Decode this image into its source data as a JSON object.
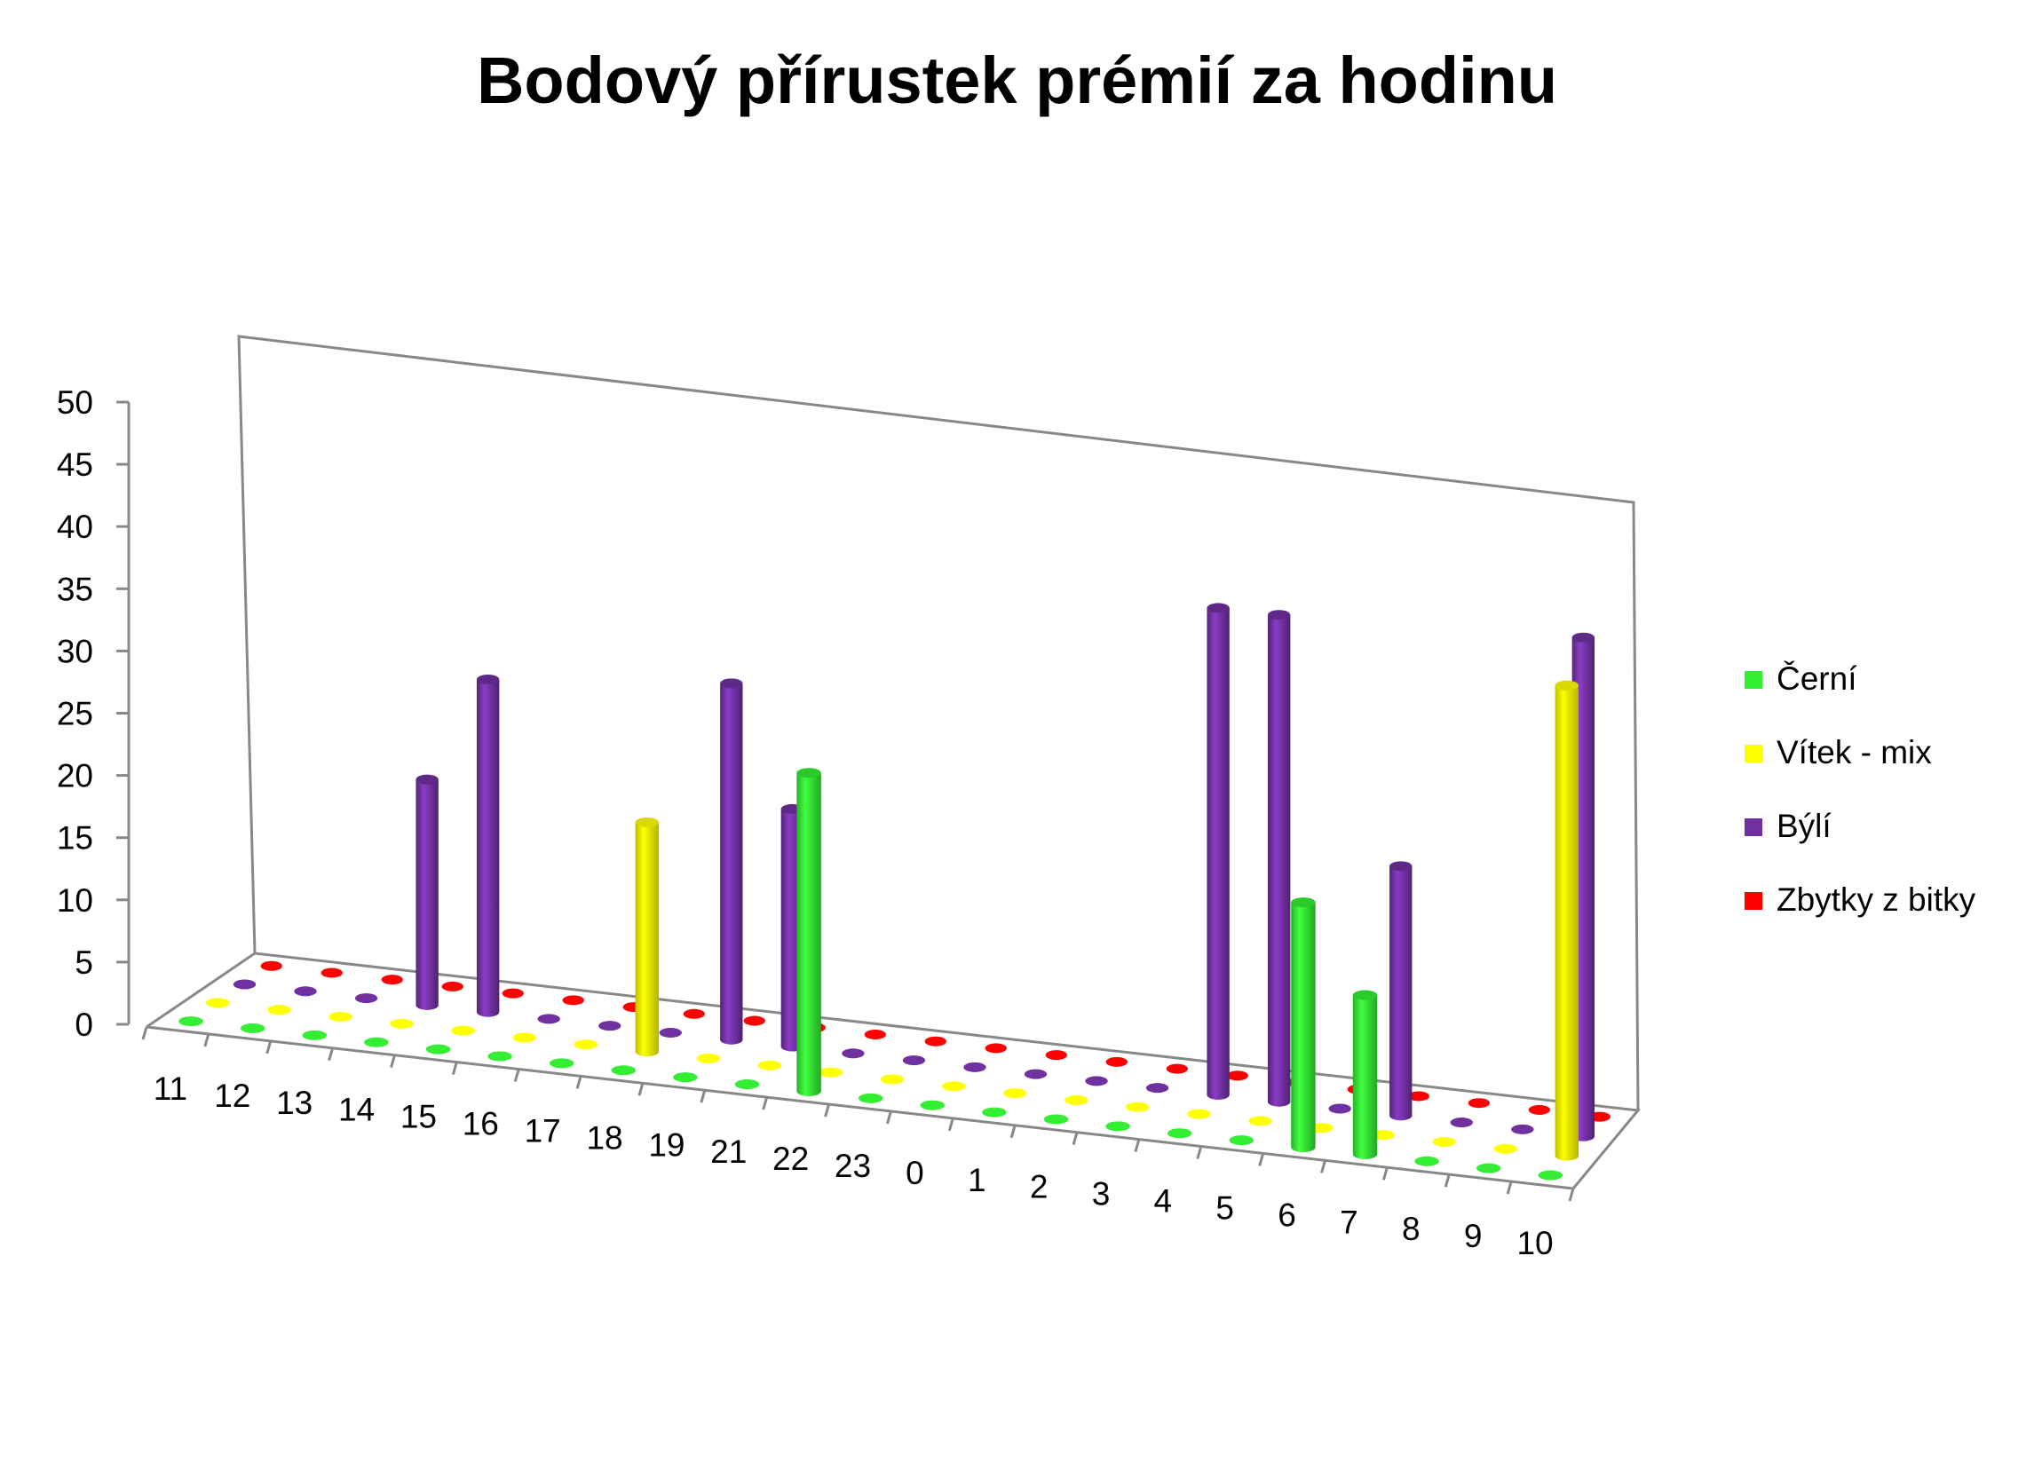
{
  "chart_data": {
    "type": "bar",
    "title": "Bodový přírustek prémií za hodinu",
    "xlabel": "",
    "ylabel": "",
    "ylim": [
      0,
      50
    ],
    "yticks": [
      0,
      5,
      10,
      15,
      20,
      25,
      30,
      35,
      40,
      45,
      50
    ],
    "categories": [
      "11",
      "12",
      "13",
      "14",
      "15",
      "16",
      "17",
      "18",
      "19",
      "21",
      "22",
      "23",
      "0",
      "1",
      "2",
      "3",
      "4",
      "5",
      "6",
      "7",
      "8",
      "9",
      "10"
    ],
    "series": [
      {
        "name": "Černí",
        "color": "#33ee33",
        "values": [
          0,
          0,
          0,
          0,
          0,
          0,
          0,
          0,
          0,
          0,
          26,
          0,
          0,
          0,
          0,
          0,
          0,
          0,
          20,
          13,
          0,
          0,
          0
        ]
      },
      {
        "name": "Vítek - mix",
        "color": "#ffff00",
        "values": [
          0,
          0,
          0,
          0,
          0,
          0,
          0,
          19,
          0,
          0,
          0,
          0,
          0,
          0,
          0,
          0,
          0,
          0,
          0,
          0,
          0,
          0,
          39
        ]
      },
      {
        "name": "Býlí",
        "color": "#7030a0",
        "values": [
          0,
          0,
          0,
          19,
          28,
          0,
          0,
          0,
          30,
          20,
          0,
          0,
          0,
          0,
          0,
          0,
          41,
          41,
          0,
          21,
          0,
          0,
          42
        ]
      },
      {
        "name": "Zbytky z bitky",
        "color": "#ff0000",
        "values": [
          0,
          0,
          0,
          0,
          0,
          0,
          0,
          0,
          0,
          0,
          0,
          0,
          0,
          0,
          0,
          0,
          0,
          0,
          0,
          0,
          0,
          0,
          0
        ]
      }
    ],
    "grid": false,
    "legend_position": "right",
    "view": "3d-perspective"
  }
}
